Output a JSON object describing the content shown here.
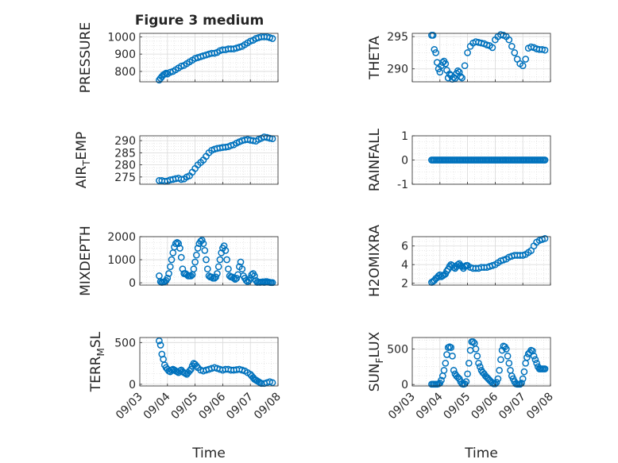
{
  "title": "Figure 3 medium",
  "colors": {
    "marker": "#0072BD",
    "axis": "#262626",
    "grid": "#D9D9D9",
    "background": "#FFFFFF"
  },
  "chart_data": [
    {
      "type": "scatter",
      "id": "pressure",
      "ylabel": "PRESSURE",
      "title": "Figure 3 medium",
      "xlim": [
        "09/03",
        "09/08"
      ],
      "ylim": [
        740,
        1020
      ],
      "yticks": [
        "800",
        "900",
        "1000"
      ],
      "xtick_labels": [],
      "xlabel": "",
      "grid": true,
      "x": [
        3.7,
        3.75,
        3.8,
        3.85,
        3.9,
        3.95,
        4.0,
        4.1,
        4.2,
        4.3,
        4.4,
        4.5,
        4.6,
        4.7,
        4.8,
        4.9,
        5.0,
        5.1,
        5.2,
        5.3,
        5.4,
        5.5,
        5.6,
        5.7,
        5.8,
        5.9,
        6.0,
        6.1,
        6.2,
        6.3,
        6.4,
        6.5,
        6.6,
        6.7,
        6.8,
        6.9,
        7.0,
        7.1,
        7.2,
        7.3,
        7.4,
        7.5,
        7.6,
        7.7,
        7.8
      ],
      "y": [
        750,
        760,
        770,
        780,
        785,
        790,
        785,
        795,
        800,
        810,
        820,
        830,
        835,
        845,
        855,
        865,
        875,
        880,
        885,
        890,
        895,
        900,
        905,
        905,
        910,
        920,
        925,
        925,
        930,
        930,
        930,
        935,
        940,
        945,
        955,
        965,
        975,
        980,
        990,
        995,
        1000,
        1000,
        1000,
        995,
        990
      ]
    },
    {
      "type": "scatter",
      "id": "theta",
      "ylabel": "THETA",
      "xlim": [
        "09/03",
        "09/08"
      ],
      "ylim": [
        288,
        295.5
      ],
      "yticks": [
        "290",
        "295"
      ],
      "xtick_labels": [],
      "xlabel": "",
      "grid": true,
      "x": [
        3.7,
        3.75,
        3.8,
        3.85,
        3.9,
        3.95,
        4.0,
        4.05,
        4.1,
        4.15,
        4.2,
        4.25,
        4.3,
        4.35,
        4.4,
        4.45,
        4.5,
        4.55,
        4.6,
        4.65,
        4.7,
        4.75,
        4.8,
        4.9,
        5.0,
        5.1,
        5.2,
        5.3,
        5.4,
        5.5,
        5.6,
        5.7,
        5.8,
        5.9,
        6.0,
        6.1,
        6.2,
        6.3,
        6.4,
        6.5,
        6.6,
        6.7,
        6.8,
        6.9,
        7.0,
        7.1,
        7.2,
        7.3,
        7.4,
        7.5,
        7.6,
        7.7,
        7.8
      ],
      "y": [
        295.2,
        295.2,
        293,
        292.5,
        291,
        290,
        289.5,
        290.5,
        291,
        291.2,
        290.8,
        289.8,
        288.6,
        289.2,
        289,
        288.4,
        288.7,
        288.5,
        289.3,
        289.7,
        289.5,
        288.8,
        288.6,
        290.5,
        292.5,
        293.5,
        294,
        294.2,
        294.1,
        294,
        293.9,
        293.7,
        293.6,
        293.3,
        294.5,
        295,
        295.3,
        295.2,
        295,
        294.5,
        293.5,
        292.5,
        291.5,
        290.8,
        290.5,
        291.5,
        293.2,
        293.4,
        293.3,
        293.1,
        293,
        293,
        292.9
      ]
    },
    {
      "type": "scatter",
      "id": "air_temp",
      "ylabel": "AIR_TEMP",
      "ylabel_main": "AIR",
      "ylabel_sub": "T",
      "ylabel_rest": "EMP",
      "xlim": [
        "09/03",
        "09/08"
      ],
      "ylim": [
        272,
        292
      ],
      "yticks": [
        "275",
        "280",
        "285",
        "290"
      ],
      "xtick_labels": [],
      "xlabel": "",
      "grid": true,
      "x": [
        3.7,
        3.8,
        3.9,
        4.0,
        4.1,
        4.2,
        4.3,
        4.4,
        4.5,
        4.6,
        4.7,
        4.8,
        4.9,
        5.0,
        5.1,
        5.2,
        5.3,
        5.4,
        5.5,
        5.6,
        5.7,
        5.8,
        5.9,
        6.0,
        6.1,
        6.2,
        6.3,
        6.4,
        6.5,
        6.6,
        6.7,
        6.8,
        6.9,
        7.0,
        7.1,
        7.2,
        7.3,
        7.4,
        7.5,
        7.6,
        7.7,
        7.8
      ],
      "y": [
        273.5,
        273.5,
        273.2,
        273.3,
        273.8,
        274,
        274.3,
        274.5,
        274,
        274.2,
        275,
        275.5,
        277,
        278.5,
        280,
        281,
        282,
        283.5,
        285,
        286,
        286.5,
        286.8,
        287,
        287.2,
        287.3,
        287.5,
        288,
        288.3,
        289,
        289.5,
        290,
        290.3,
        290.5,
        290.2,
        290,
        289.8,
        290.5,
        291,
        291.5,
        291.3,
        291,
        290.8
      ]
    },
    {
      "type": "scatter",
      "id": "rainfall",
      "ylabel": "RAINFALL",
      "xlim": [
        "09/03",
        "09/08"
      ],
      "ylim": [
        -1,
        1
      ],
      "yticks": [
        "-1",
        "0",
        "1"
      ],
      "xtick_labels": [],
      "xlabel": "",
      "grid": true,
      "x": [
        3.7,
        3.75,
        3.8,
        3.85,
        3.9,
        3.95,
        4.0,
        4.05,
        4.1,
        4.15,
        4.2,
        4.25,
        4.3,
        4.35,
        4.4,
        4.45,
        4.5,
        4.55,
        4.6,
        4.65,
        4.7,
        4.75,
        4.8,
        4.85,
        4.9,
        4.95,
        5.0,
        5.05,
        5.1,
        5.15,
        5.2,
        5.25,
        5.3,
        5.35,
        5.4,
        5.45,
        5.5,
        5.55,
        5.6,
        5.65,
        5.7,
        5.75,
        5.8,
        5.85,
        5.9,
        5.95,
        6.0,
        6.05,
        6.1,
        6.15,
        6.2,
        6.25,
        6.3,
        6.35,
        6.4,
        6.45,
        6.5,
        6.55,
        6.6,
        6.65,
        6.7,
        6.75,
        6.8,
        6.85,
        6.9,
        6.95,
        7.0,
        7.05,
        7.1,
        7.15,
        7.2,
        7.25,
        7.3,
        7.35,
        7.4,
        7.45,
        7.5,
        7.55,
        7.6,
        7.65,
        7.7,
        7.75,
        7.8
      ],
      "y": [
        0,
        0,
        0,
        0,
        0,
        0,
        0,
        0,
        0,
        0,
        0,
        0,
        0,
        0,
        0,
        0,
        0,
        0,
        0,
        0,
        0,
        0,
        0,
        0,
        0,
        0,
        0,
        0,
        0,
        0,
        0,
        0,
        0,
        0,
        0,
        0,
        0,
        0,
        0,
        0,
        0,
        0,
        0,
        0,
        0,
        0,
        0,
        0,
        0,
        0,
        0,
        0,
        0,
        0,
        0,
        0,
        0,
        0,
        0,
        0,
        0,
        0,
        0,
        0,
        0,
        0,
        0,
        0,
        0,
        0,
        0,
        0,
        0,
        0,
        0,
        0,
        0,
        0,
        0,
        0,
        0,
        0,
        0
      ]
    },
    {
      "type": "scatter",
      "id": "mixdepth",
      "ylabel": "MIXDEPTH",
      "xlim": [
        "09/03",
        "09/08"
      ],
      "ylim": [
        -100,
        2000
      ],
      "yticks": [
        "0",
        "1000",
        "2000"
      ],
      "xtick_labels": [],
      "xlabel": "",
      "grid": true,
      "x": [
        3.7,
        3.75,
        3.8,
        3.85,
        3.9,
        3.95,
        4.0,
        4.05,
        4.1,
        4.15,
        4.2,
        4.25,
        4.3,
        4.35,
        4.4,
        4.45,
        4.5,
        4.55,
        4.6,
        4.65,
        4.7,
        4.75,
        4.8,
        4.85,
        4.9,
        4.95,
        5.0,
        5.05,
        5.1,
        5.15,
        5.2,
        5.25,
        5.3,
        5.35,
        5.4,
        5.45,
        5.5,
        5.55,
        5.6,
        5.65,
        5.7,
        5.75,
        5.8,
        5.85,
        5.9,
        5.95,
        6.0,
        6.05,
        6.1,
        6.15,
        6.2,
        6.25,
        6.3,
        6.35,
        6.4,
        6.45,
        6.5,
        6.55,
        6.6,
        6.65,
        6.7,
        6.75,
        6.8,
        6.85,
        6.9,
        6.95,
        7.0,
        7.05,
        7.1,
        7.15,
        7.2,
        7.25,
        7.3,
        7.35,
        7.4,
        7.45,
        7.5,
        7.55,
        7.6,
        7.65,
        7.7,
        7.75,
        7.8
      ],
      "y": [
        300,
        50,
        20,
        30,
        50,
        100,
        200,
        400,
        700,
        1000,
        1300,
        1550,
        1700,
        1750,
        1700,
        1500,
        1100,
        600,
        400,
        400,
        350,
        300,
        300,
        300,
        350,
        600,
        900,
        1200,
        1500,
        1700,
        1800,
        1850,
        1700,
        1400,
        1000,
        600,
        300,
        250,
        250,
        200,
        200,
        250,
        400,
        700,
        1000,
        1300,
        1500,
        1600,
        1400,
        1000,
        600,
        300,
        250,
        250,
        200,
        150,
        200,
        350,
        700,
        900,
        600,
        300,
        200,
        100,
        50,
        100,
        200,
        350,
        400,
        300,
        100,
        20,
        30,
        20,
        30,
        40,
        20,
        50,
        50,
        30,
        20,
        10,
        10
      ]
    },
    {
      "type": "scatter",
      "id": "h2omixra",
      "ylabel": "H2OMIXRA",
      "xlim": [
        "09/03",
        "09/08"
      ],
      "ylim": [
        1.8,
        7
      ],
      "yticks": [
        "2",
        "4",
        "6"
      ],
      "xtick_labels": [],
      "xlabel": "",
      "grid": true,
      "x": [
        3.7,
        3.75,
        3.8,
        3.85,
        3.9,
        3.95,
        4.0,
        4.05,
        4.1,
        4.15,
        4.2,
        4.25,
        4.3,
        4.35,
        4.4,
        4.45,
        4.5,
        4.55,
        4.6,
        4.65,
        4.7,
        4.75,
        4.8,
        4.85,
        4.9,
        4.95,
        5.0,
        5.1,
        5.2,
        5.3,
        5.4,
        5.5,
        5.6,
        5.7,
        5.8,
        5.9,
        6.0,
        6.1,
        6.2,
        6.3,
        6.4,
        6.5,
        6.6,
        6.7,
        6.8,
        6.9,
        7.0,
        7.1,
        7.2,
        7.3,
        7.4,
        7.5,
        7.6,
        7.7,
        7.8
      ],
      "y": [
        2.1,
        2.2,
        2.3,
        2.5,
        2.6,
        2.8,
        2.9,
        2.7,
        2.8,
        2.9,
        3.0,
        3.3,
        3.5,
        3.8,
        4.0,
        3.9,
        3.7,
        3.6,
        3.8,
        4.0,
        4.1,
        3.9,
        3.8,
        3.6,
        3.8,
        3.9,
        3.9,
        3.7,
        3.6,
        3.6,
        3.6,
        3.7,
        3.7,
        3.7,
        3.8,
        3.9,
        4.0,
        4.2,
        4.4,
        4.5,
        4.6,
        4.8,
        4.9,
        5.0,
        5.0,
        5.0,
        5.0,
        5.1,
        5.3,
        5.5,
        6.0,
        6.4,
        6.6,
        6.7,
        6.8
      ]
    },
    {
      "type": "scatter",
      "id": "terr_msl",
      "ylabel": "TERR_MSL",
      "ylabel_main": "TERR",
      "ylabel_sub": "M",
      "ylabel_rest": "SL",
      "xlim": [
        "09/03",
        "09/08"
      ],
      "ylim": [
        -20,
        560
      ],
      "yticks": [
        "0",
        "500"
      ],
      "xtick_labels": [
        "09/03",
        "09/04",
        "09/05",
        "09/06",
        "09/07",
        "09/08"
      ],
      "xlabel": "Time",
      "grid": true,
      "x": [
        3.7,
        3.75,
        3.8,
        3.85,
        3.9,
        3.95,
        4.0,
        4.05,
        4.1,
        4.15,
        4.2,
        4.25,
        4.3,
        4.35,
        4.4,
        4.45,
        4.5,
        4.55,
        4.6,
        4.65,
        4.7,
        4.75,
        4.8,
        4.85,
        4.9,
        4.95,
        5.0,
        5.05,
        5.1,
        5.2,
        5.3,
        5.4,
        5.5,
        5.6,
        5.7,
        5.8,
        5.9,
        6.0,
        6.1,
        6.2,
        6.3,
        6.4,
        6.5,
        6.6,
        6.7,
        6.8,
        6.9,
        7.0,
        7.05,
        7.1,
        7.15,
        7.2,
        7.25,
        7.3,
        7.35,
        7.4,
        7.5,
        7.6,
        7.7,
        7.8
      ],
      "y": [
        520,
        470,
        360,
        300,
        230,
        200,
        180,
        160,
        150,
        170,
        180,
        170,
        160,
        150,
        140,
        160,
        170,
        150,
        140,
        130,
        120,
        140,
        160,
        180,
        220,
        250,
        240,
        220,
        200,
        170,
        160,
        170,
        180,
        190,
        200,
        190,
        180,
        170,
        180,
        180,
        170,
        170,
        175,
        180,
        170,
        160,
        140,
        120,
        100,
        80,
        60,
        50,
        40,
        30,
        20,
        10,
        10,
        20,
        30,
        20
      ]
    },
    {
      "type": "scatter",
      "id": "sun_flux",
      "ylabel": "SUN_FLUX",
      "ylabel_main": "SUN",
      "ylabel_sub": "F",
      "ylabel_rest": "LUX",
      "xlim": [
        "09/03",
        "09/08"
      ],
      "ylim": [
        -20,
        660
      ],
      "yticks": [
        "0",
        "500"
      ],
      "xtick_labels": [
        "09/03",
        "09/04",
        "09/05",
        "09/06",
        "09/07",
        "09/08"
      ],
      "xlabel": "Time",
      "grid": true,
      "x": [
        3.7,
        3.75,
        3.8,
        3.85,
        3.9,
        3.95,
        4.0,
        4.05,
        4.1,
        4.15,
        4.2,
        4.25,
        4.3,
        4.35,
        4.4,
        4.45,
        4.5,
        4.55,
        4.6,
        4.65,
        4.7,
        4.75,
        4.8,
        4.85,
        4.9,
        4.95,
        5.0,
        5.05,
        5.1,
        5.15,
        5.2,
        5.25,
        5.3,
        5.35,
        5.4,
        5.45,
        5.5,
        5.55,
        5.6,
        5.65,
        5.7,
        5.75,
        5.8,
        5.85,
        5.9,
        5.95,
        6.0,
        6.05,
        6.1,
        6.15,
        6.2,
        6.25,
        6.3,
        6.35,
        6.4,
        6.45,
        6.5,
        6.55,
        6.6,
        6.65,
        6.7,
        6.75,
        6.8,
        6.85,
        6.9,
        6.95,
        7.0,
        7.05,
        7.1,
        7.15,
        7.2,
        7.25,
        7.3,
        7.35,
        7.4,
        7.45,
        7.5,
        7.55,
        7.6,
        7.65,
        7.7,
        7.75,
        7.8
      ],
      "y": [
        5,
        5,
        5,
        5,
        5,
        10,
        20,
        60,
        120,
        200,
        300,
        420,
        520,
        530,
        520,
        400,
        200,
        150,
        120,
        100,
        80,
        40,
        10,
        5,
        10,
        40,
        150,
        300,
        480,
        600,
        600,
        580,
        500,
        400,
        300,
        250,
        200,
        170,
        150,
        120,
        100,
        80,
        60,
        40,
        20,
        10,
        10,
        30,
        80,
        200,
        350,
        480,
        540,
        530,
        500,
        400,
        300,
        200,
        120,
        80,
        40,
        10,
        5,
        5,
        5,
        20,
        80,
        180,
        300,
        380,
        430,
        450,
        480,
        470,
        400,
        350,
        300,
        250,
        220,
        220,
        220,
        220,
        220
      ]
    }
  ]
}
